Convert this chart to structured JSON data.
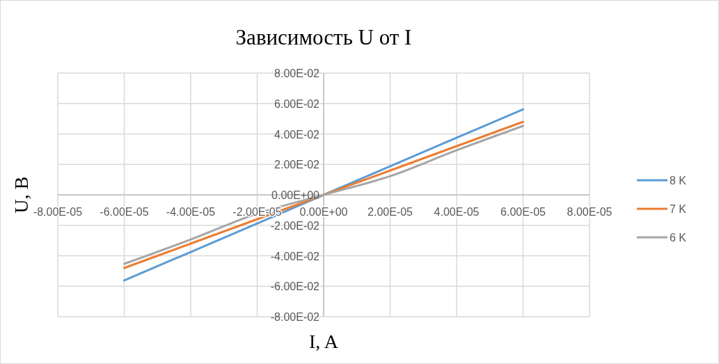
{
  "chart_data": {
    "type": "line",
    "title": "Зависимость U от I",
    "xlabel": "I, A",
    "ylabel": "U, В",
    "x": [
      -6e-05,
      -4e-05,
      -2e-05,
      0,
      2e-05,
      4e-05,
      6e-05
    ],
    "series": [
      {
        "name": "8 K",
        "color": "#5b9bd5",
        "values": [
          -0.0562,
          -0.0375,
          -0.0188,
          0,
          0.0188,
          0.0375,
          0.0562
        ]
      },
      {
        "name": "7 K",
        "color": "#ed7d31",
        "values": [
          -0.048,
          -0.032,
          -0.016,
          0,
          0.016,
          0.032,
          0.048
        ]
      },
      {
        "name": "6 K",
        "color": "#a5a5a5",
        "values": [
          -0.0453,
          -0.0293,
          -0.0123,
          0,
          0.0123,
          0.0293,
          0.0453
        ]
      }
    ],
    "xlim": [
      -8e-05,
      8e-05
    ],
    "xticks": [
      {
        "value": -8e-05,
        "label": "-8.00E-05"
      },
      {
        "value": -6e-05,
        "label": "-6.00E-05"
      },
      {
        "value": -4e-05,
        "label": "-4.00E-05"
      },
      {
        "value": -2e-05,
        "label": "-2.00E-05"
      },
      {
        "value": 0,
        "label": "0.00E+00"
      },
      {
        "value": 2e-05,
        "label": "2.00E-05"
      },
      {
        "value": 4e-05,
        "label": "4.00E-05"
      },
      {
        "value": 6e-05,
        "label": "6.00E-05"
      },
      {
        "value": 8e-05,
        "label": "8.00E-05"
      }
    ],
    "ylim": [
      -0.08,
      0.08
    ],
    "yticks": [
      {
        "value": -0.08,
        "label": "-8.00E-02"
      },
      {
        "value": -0.06,
        "label": "-6.00E-02"
      },
      {
        "value": -0.04,
        "label": "-4.00E-02"
      },
      {
        "value": -0.02,
        "label": "-2.00E-02"
      },
      {
        "value": 0,
        "label": "0.00E+00"
      },
      {
        "value": 0.02,
        "label": "2.00E-02"
      },
      {
        "value": 0.04,
        "label": "4.00E-02"
      },
      {
        "value": 0.06,
        "label": "6.00E-02"
      },
      {
        "value": 0.08,
        "label": "8.00E-02"
      }
    ],
    "grid": true,
    "legend": "right",
    "marker": "none",
    "line_style": "solid"
  }
}
